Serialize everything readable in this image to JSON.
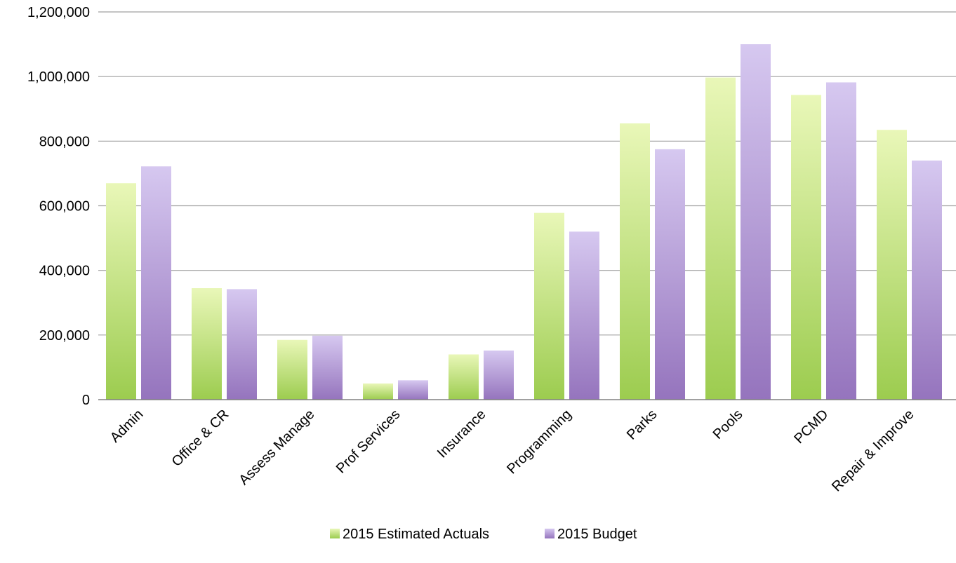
{
  "chart_data": {
    "type": "bar",
    "categories": [
      "Admin",
      "Office & CR",
      "Assess Manage",
      "Prof Services",
      "Insurance",
      "Programming",
      "Parks",
      "Pools",
      "PCMD",
      "Repair & Improve"
    ],
    "series": [
      {
        "name": "2015 Estimated Actuals",
        "values": [
          670000,
          345000,
          185000,
          50000,
          140000,
          578000,
          855000,
          997000,
          943000,
          835000
        ],
        "color_top": "#e9f7b8",
        "color_bottom": "#9ccc4f"
      },
      {
        "name": "2015 Budget",
        "values": [
          722000,
          342000,
          198000,
          60000,
          152000,
          520000,
          775000,
          1100000,
          982000,
          740000
        ],
        "color_top": "#d6c8f0",
        "color_bottom": "#9574bd"
      }
    ],
    "y_tick_labels": [
      "0",
      "200,000",
      "400,000",
      "600,000",
      "800,000",
      "1,000,000",
      "1,200,000"
    ],
    "y_tick_values": [
      0,
      200000,
      400000,
      600000,
      800000,
      1000000,
      1200000
    ],
    "ylim": [
      0,
      1200000
    ],
    "grid": true,
    "legend_position": "bottom-center"
  }
}
